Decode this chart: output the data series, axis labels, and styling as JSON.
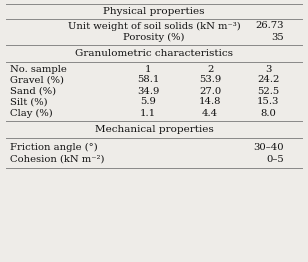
{
  "bg_color": "#eeece8",
  "white": "#ffffff",
  "line_color": "#888888",
  "text_color": "#111111",
  "title_physical": "Physical properties",
  "title_granulometric": "Granulometric characteristics",
  "title_mechanical": "Mechanical properties",
  "physical_rows": [
    [
      "Unit weight of soil solids (kN m⁻³)",
      "26.73"
    ],
    [
      "Porosity (%)",
      "35"
    ]
  ],
  "granulo_header": [
    "No. sample",
    "1",
    "2",
    "3"
  ],
  "granulo_rows": [
    [
      "Gravel (%)",
      "58.1",
      "53.9",
      "24.2"
    ],
    [
      "Sand (%)",
      "34.9",
      "27.0",
      "52.5"
    ],
    [
      "Silt (%)",
      "5.9",
      "14.8",
      "15.3"
    ],
    [
      "Clay (%)",
      "1.1",
      "4.4",
      "8.0"
    ]
  ],
  "mechanical_rows": [
    [
      "Friction angle (°)",
      "30–40"
    ],
    [
      "Cohesion (kN m⁻²)",
      "0–5"
    ]
  ],
  "font_size": 7.2,
  "header_font_size": 7.5,
  "fig_width": 3.08,
  "fig_height": 2.62,
  "dpi": 100
}
